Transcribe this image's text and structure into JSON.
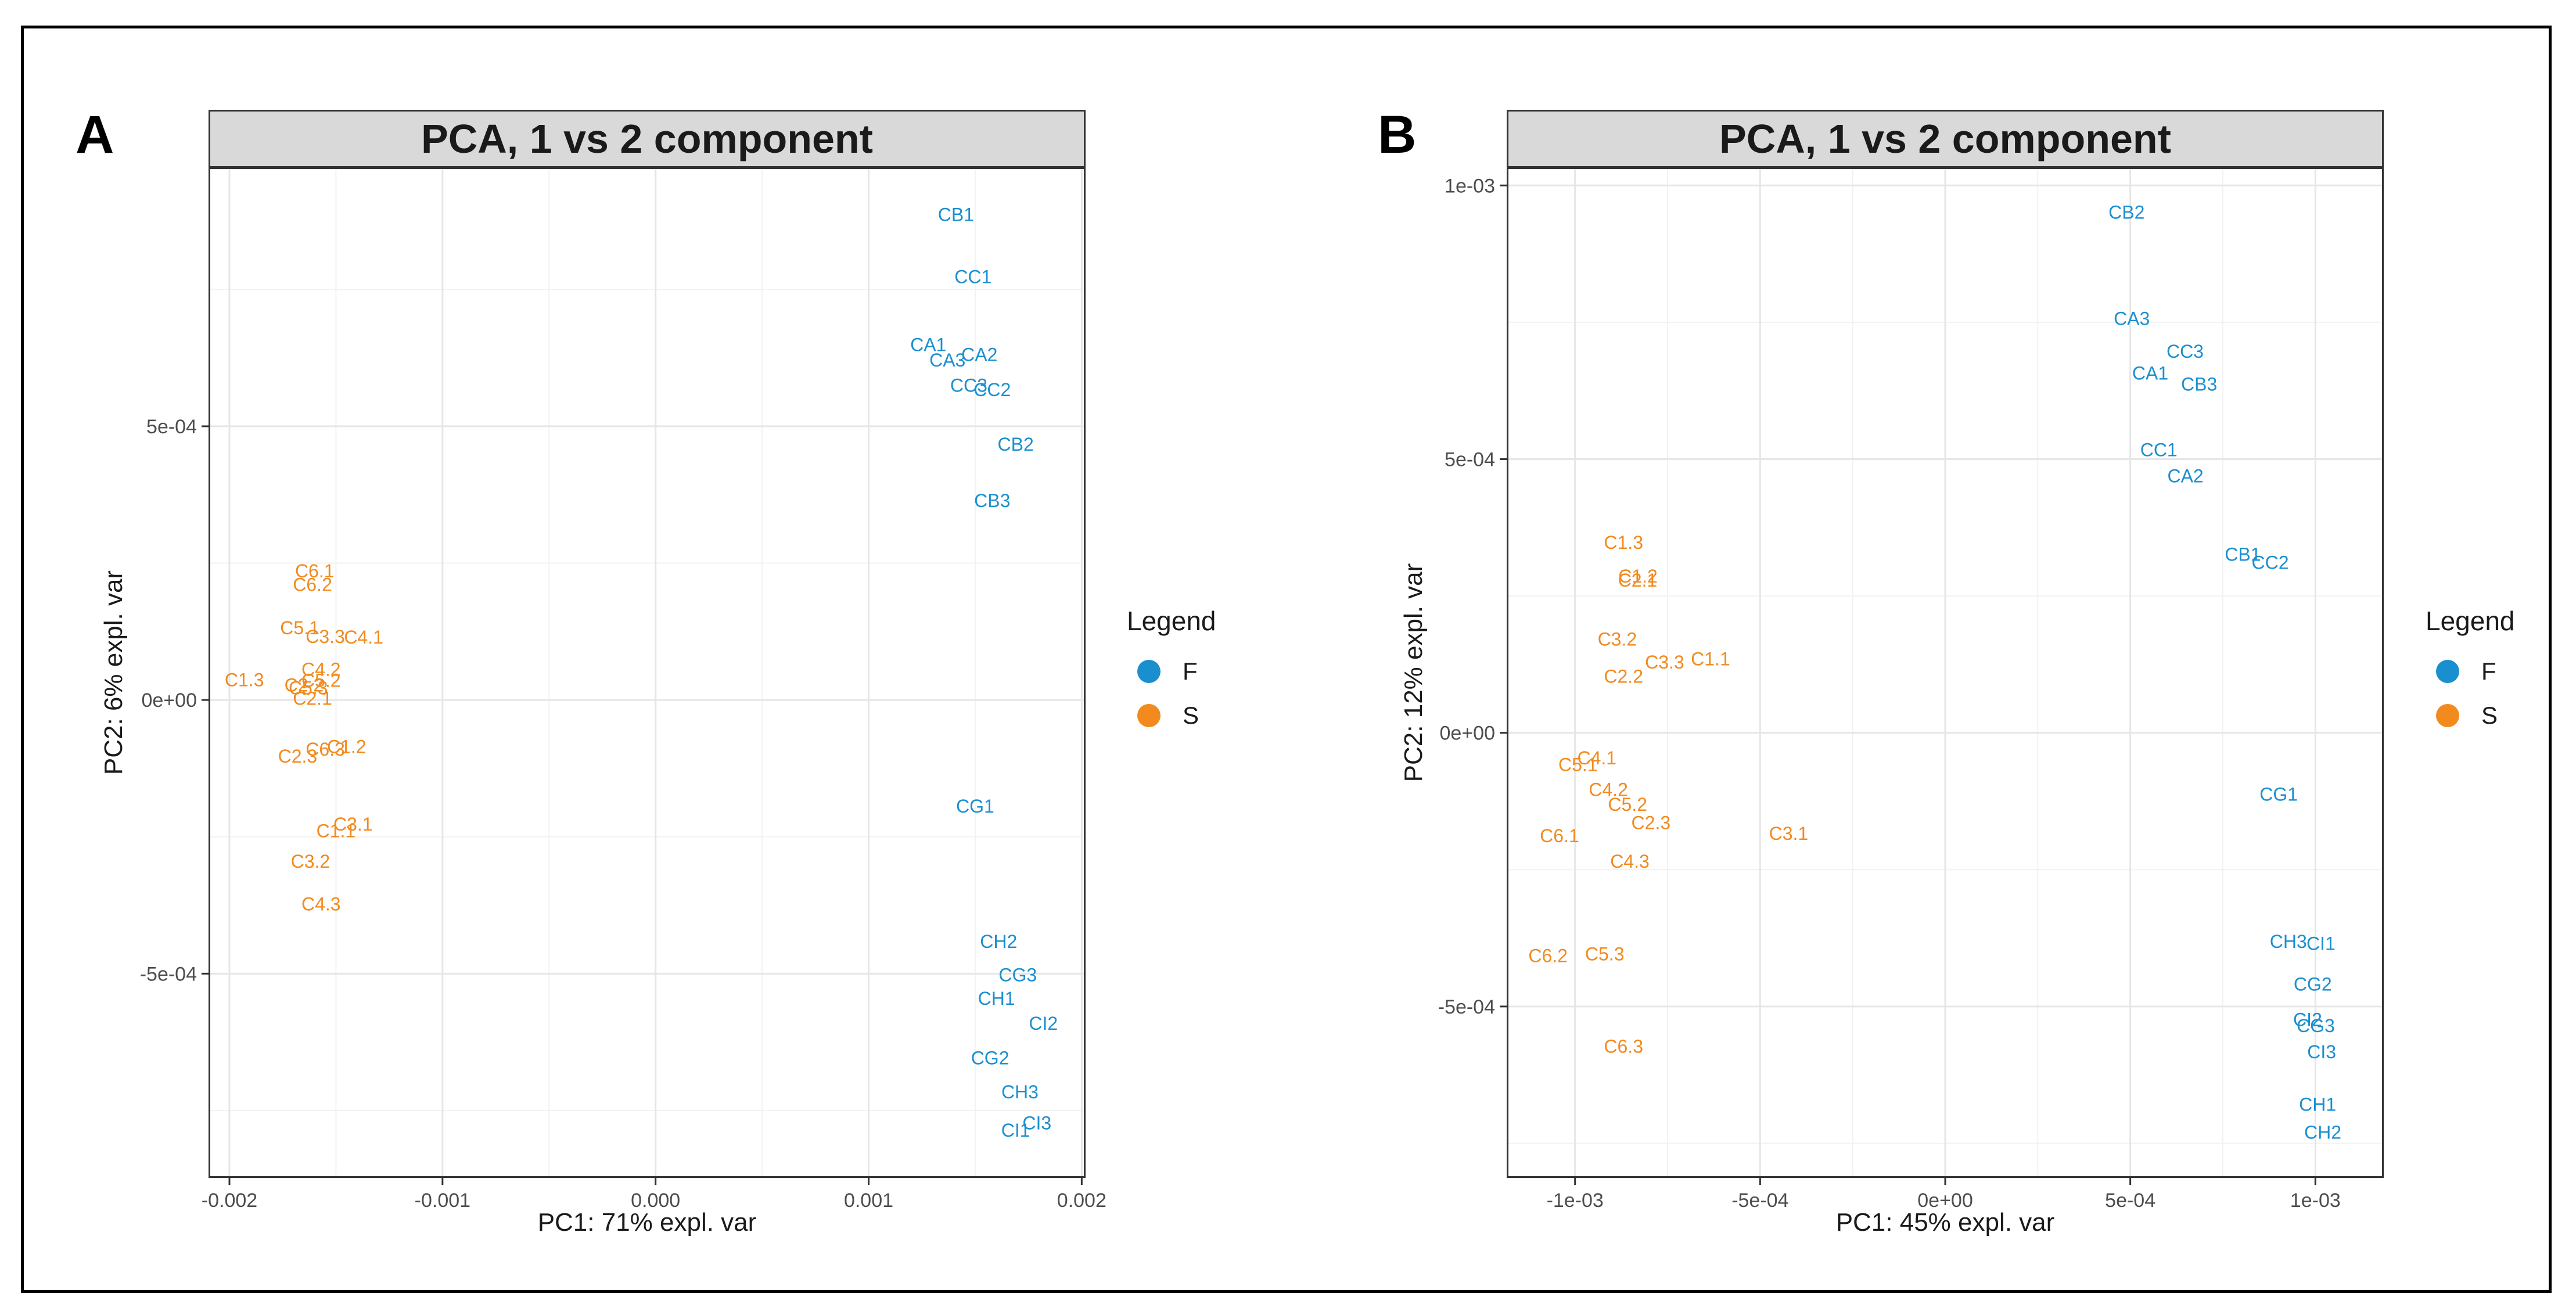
{
  "colors": {
    "F": "#1a8fd0",
    "S": "#f28a1e"
  },
  "legend": {
    "title": "Legend",
    "entries": [
      {
        "key": "F",
        "label": "F"
      },
      {
        "key": "S",
        "label": "S"
      }
    ]
  },
  "chart_data": [
    {
      "type": "scatter",
      "panel": "A",
      "title": "PCA, 1 vs 2 component",
      "xlabel": "PC1: 71% expl. var",
      "ylabel": "PC2: 6% expl. var",
      "xlim": [
        -0.00209,
        0.00201
      ],
      "ylim": [
        -0.00087,
        0.00097
      ],
      "xticks": [
        -0.002,
        -0.001,
        0.0,
        0.001,
        0.002
      ],
      "xtick_labels": [
        "-0.002",
        "-0.001",
        "0.000",
        "0.001",
        "0.002"
      ],
      "yticks": [
        -0.0005,
        0.0,
        0.0005
      ],
      "ytick_labels": [
        "-5e-04",
        "0e+00",
        "5e-04"
      ],
      "grid": true,
      "points": [
        {
          "label": "CB1",
          "group": "F",
          "x": 0.00141,
          "y": 0.000888
        },
        {
          "label": "CC1",
          "group": "F",
          "x": 0.00149,
          "y": 0.000774
        },
        {
          "label": "CA1",
          "group": "F",
          "x": 0.00128,
          "y": 0.00065
        },
        {
          "label": "CA3",
          "group": "F",
          "x": 0.00137,
          "y": 0.000622
        },
        {
          "label": "CA2",
          "group": "F",
          "x": 0.00152,
          "y": 0.000632
        },
        {
          "label": "CC3",
          "group": "F",
          "x": 0.00147,
          "y": 0.000576
        },
        {
          "label": "CC2",
          "group": "F",
          "x": 0.00158,
          "y": 0.000568
        },
        {
          "label": "CB2",
          "group": "F",
          "x": 0.00169,
          "y": 0.000468
        },
        {
          "label": "CB3",
          "group": "F",
          "x": 0.00158,
          "y": 0.000365
        },
        {
          "label": "CG1",
          "group": "F",
          "x": 0.0015,
          "y": -0.000193
        },
        {
          "label": "CH2",
          "group": "F",
          "x": 0.00161,
          "y": -0.00044
        },
        {
          "label": "CG3",
          "group": "F",
          "x": 0.0017,
          "y": -0.000501
        },
        {
          "label": "CH1",
          "group": "F",
          "x": 0.0016,
          "y": -0.000544
        },
        {
          "label": "CI2",
          "group": "F",
          "x": 0.00182,
          "y": -0.00059
        },
        {
          "label": "CG2",
          "group": "F",
          "x": 0.00157,
          "y": -0.000653
        },
        {
          "label": "CH3",
          "group": "F",
          "x": 0.00171,
          "y": -0.000715
        },
        {
          "label": "CI3",
          "group": "F",
          "x": 0.00179,
          "y": -0.000772
        },
        {
          "label": "CI1",
          "group": "F",
          "x": 0.00169,
          "y": -0.000785
        },
        {
          "label": "C6.1",
          "group": "S",
          "x": -0.0016,
          "y": 0.000237
        },
        {
          "label": "C6.2",
          "group": "S",
          "x": -0.00161,
          "y": 0.000212
        },
        {
          "label": "C5.1",
          "group": "S",
          "x": -0.00167,
          "y": 0.000133
        },
        {
          "label": "C3.3",
          "group": "S",
          "x": -0.00155,
          "y": 0.000117
        },
        {
          "label": "C4.1",
          "group": "S",
          "x": -0.00137,
          "y": 0.000116
        },
        {
          "label": "C1.3",
          "group": "S",
          "x": -0.00193,
          "y": 3.8e-05
        },
        {
          "label": "C4.2",
          "group": "S",
          "x": -0.00157,
          "y": 5.7e-05
        },
        {
          "label": "C5.2",
          "group": "S",
          "x": -0.00157,
          "y": 3.7e-05
        },
        {
          "label": "C5.3",
          "group": "S",
          "x": -0.00163,
          "y": 2.3e-05
        },
        {
          "label": "C2.2",
          "group": "S",
          "x": -0.00165,
          "y": 2.8e-05
        },
        {
          "label": "C2.1",
          "group": "S",
          "x": -0.00161,
          "y": 4e-06
        },
        {
          "label": "C2.3",
          "group": "S",
          "x": -0.00168,
          "y": -0.000102
        },
        {
          "label": "C6.3",
          "group": "S",
          "x": -0.00155,
          "y": -8.9e-05
        },
        {
          "label": "C1.2",
          "group": "S",
          "x": -0.00145,
          "y": -8.4e-05
        },
        {
          "label": "C3.1",
          "group": "S",
          "x": -0.00142,
          "y": -0.000226
        },
        {
          "label": "C1.1",
          "group": "S",
          "x": -0.0015,
          "y": -0.000238
        },
        {
          "label": "C3.2",
          "group": "S",
          "x": -0.00162,
          "y": -0.000294
        },
        {
          "label": "C4.3",
          "group": "S",
          "x": -0.00157,
          "y": -0.000372
        }
      ]
    },
    {
      "type": "scatter",
      "panel": "B",
      "title": "PCA, 1 vs 2 component",
      "xlabel": "PC1: 45% expl. var",
      "ylabel": "PC2: 12% expl. var",
      "xlim": [
        -0.00118,
        0.00118
      ],
      "ylim": [
        -0.00081,
        0.00103
      ],
      "xticks": [
        -0.001,
        -0.0005,
        0.0,
        0.0005,
        0.001
      ],
      "xtick_labels": [
        "-1e-03",
        "-5e-04",
        "0e+00",
        "5e-04",
        "1e-03"
      ],
      "yticks": [
        -0.0005,
        0.0,
        0.0005,
        0.001
      ],
      "ytick_labels": [
        "-5e-04",
        "0e+00",
        "5e-04",
        "1e-03"
      ],
      "grid": true,
      "points": [
        {
          "label": "CB2",
          "group": "F",
          "x": 0.00049,
          "y": 0.000952
        },
        {
          "label": "CA3",
          "group": "F",
          "x": 0.000504,
          "y": 0.000758
        },
        {
          "label": "CC3",
          "group": "F",
          "x": 0.000648,
          "y": 0.000698
        },
        {
          "label": "CA1",
          "group": "F",
          "x": 0.000554,
          "y": 0.000658
        },
        {
          "label": "CB3",
          "group": "F",
          "x": 0.000686,
          "y": 0.000638
        },
        {
          "label": "CC1",
          "group": "F",
          "x": 0.000577,
          "y": 0.000518
        },
        {
          "label": "CA2",
          "group": "F",
          "x": 0.000649,
          "y": 0.00047
        },
        {
          "label": "CB1",
          "group": "F",
          "x": 0.000804,
          "y": 0.000327
        },
        {
          "label": "CC2",
          "group": "F",
          "x": 0.000878,
          "y": 0.000312
        },
        {
          "label": "CG1",
          "group": "F",
          "x": 0.000901,
          "y": -0.000111
        },
        {
          "label": "CH3",
          "group": "F",
          "x": 0.000927,
          "y": -0.00038
        },
        {
          "label": "CI1",
          "group": "F",
          "x": 0.001015,
          "y": -0.000384
        },
        {
          "label": "CG2",
          "group": "F",
          "x": 0.000993,
          "y": -0.000458
        },
        {
          "label": "CI2",
          "group": "F",
          "x": 0.000979,
          "y": -0.000523
        },
        {
          "label": "CG3",
          "group": "F",
          "x": 0.001001,
          "y": -0.000534
        },
        {
          "label": "CI3",
          "group": "F",
          "x": 0.001017,
          "y": -0.000582
        },
        {
          "label": "CH1",
          "group": "F",
          "x": 0.001006,
          "y": -0.000678
        },
        {
          "label": "CH2",
          "group": "F",
          "x": 0.00102,
          "y": -0.000729
        },
        {
          "label": "C1.3",
          "group": "S",
          "x": -0.000869,
          "y": 0.000349
        },
        {
          "label": "C1.2",
          "group": "S",
          "x": -0.00083,
          "y": 0.000287
        },
        {
          "label": "C2.1",
          "group": "S",
          "x": -0.000831,
          "y": 0.00028
        },
        {
          "label": "C3.2",
          "group": "S",
          "x": -0.000886,
          "y": 0.000172
        },
        {
          "label": "C3.3",
          "group": "S",
          "x": -0.000758,
          "y": 0.00013
        },
        {
          "label": "C1.1",
          "group": "S",
          "x": -0.000634,
          "y": 0.000136
        },
        {
          "label": "C2.2",
          "group": "S",
          "x": -0.000869,
          "y": 0.000104
        },
        {
          "label": "C4.1",
          "group": "S",
          "x": -0.000941,
          "y": -4.5e-05
        },
        {
          "label": "C5.1",
          "group": "S",
          "x": -0.000992,
          "y": -5.7e-05
        },
        {
          "label": "C4.2",
          "group": "S",
          "x": -0.00091,
          "y": -0.000103
        },
        {
          "label": "C5.2",
          "group": "S",
          "x": -0.000858,
          "y": -0.00013
        },
        {
          "label": "C2.3",
          "group": "S",
          "x": -0.000795,
          "y": -0.000163
        },
        {
          "label": "C6.1",
          "group": "S",
          "x": -0.001042,
          "y": -0.000187
        },
        {
          "label": "C3.1",
          "group": "S",
          "x": -0.000423,
          "y": -0.000183
        },
        {
          "label": "C4.3",
          "group": "S",
          "x": -0.000852,
          "y": -0.000234
        },
        {
          "label": "C6.2",
          "group": "S",
          "x": -0.001073,
          "y": -0.000406
        },
        {
          "label": "C5.3",
          "group": "S",
          "x": -0.00092,
          "y": -0.000403
        },
        {
          "label": "C6.3",
          "group": "S",
          "x": -0.000869,
          "y": -0.000572
        }
      ]
    }
  ]
}
